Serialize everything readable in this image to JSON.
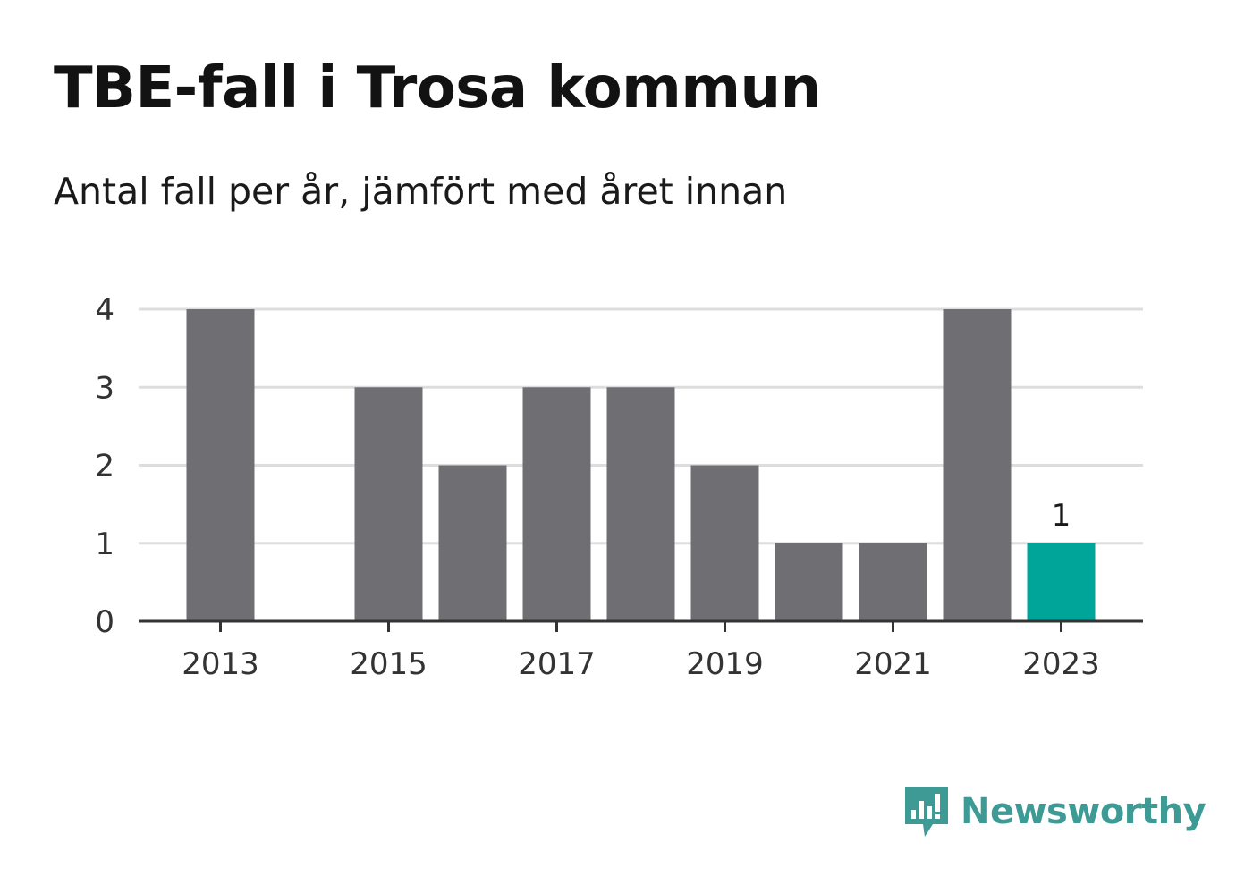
{
  "header": {
    "title": "TBE-fall i Trosa kommun",
    "subtitle": "Antal fall per år, jämfört med året innan"
  },
  "brand": {
    "name": "Newsworthy",
    "color": "#3d9a94"
  },
  "colors": {
    "bar": "#6f6e73",
    "highlight": "#00a59a",
    "grid": "#dddddd",
    "axis": "#333333"
  },
  "chart_data": {
    "type": "bar",
    "categories": [
      "2013",
      "2014",
      "2015",
      "2016",
      "2017",
      "2018",
      "2019",
      "2020",
      "2021",
      "2022",
      "2023"
    ],
    "values": [
      4,
      0,
      3,
      2,
      3,
      3,
      2,
      1,
      1,
      4,
      1
    ],
    "x_tick_labels": [
      "2013",
      "2015",
      "2017",
      "2019",
      "2021",
      "2023"
    ],
    "y_ticks": [
      0,
      1,
      2,
      3,
      4
    ],
    "ylim": [
      0,
      4
    ],
    "highlight_category": "2023",
    "data_labels": [
      {
        "category": "2023",
        "text": "1"
      }
    ],
    "grid": true,
    "legend": "none",
    "xlabel": "",
    "ylabel": ""
  }
}
